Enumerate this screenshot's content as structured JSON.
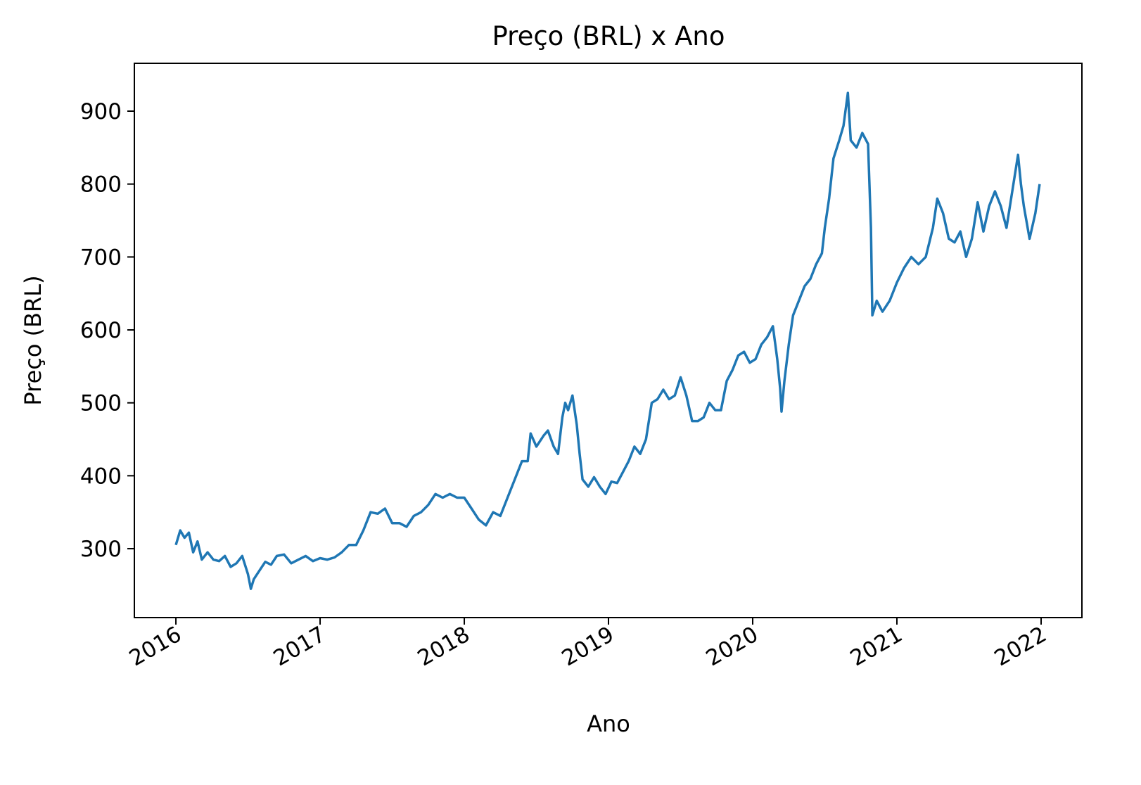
{
  "chart_data": {
    "type": "line",
    "title": "Preço (BRL) x Ano",
    "x_label": "Ano",
    "y_label": "Preço (BRL)",
    "color": "#1f77b4",
    "x": [
      2016.0,
      2016.03,
      2016.06,
      2016.09,
      2016.12,
      2016.15,
      2016.18,
      2016.22,
      2016.26,
      2016.3,
      2016.34,
      2016.38,
      2016.42,
      2016.46,
      2016.5,
      2016.52,
      2016.54,
      2016.58,
      2016.62,
      2016.66,
      2016.7,
      2016.75,
      2016.8,
      2016.85,
      2016.9,
      2016.95,
      2017.0,
      2017.05,
      2017.1,
      2017.15,
      2017.2,
      2017.25,
      2017.3,
      2017.35,
      2017.4,
      2017.45,
      2017.5,
      2017.55,
      2017.6,
      2017.65,
      2017.7,
      2017.75,
      2017.8,
      2017.85,
      2017.9,
      2017.95,
      2018.0,
      2018.05,
      2018.1,
      2018.15,
      2018.2,
      2018.25,
      2018.3,
      2018.35,
      2018.4,
      2018.44,
      2018.46,
      2018.5,
      2018.55,
      2018.58,
      2018.62,
      2018.65,
      2018.68,
      2018.7,
      2018.72,
      2018.75,
      2018.78,
      2018.8,
      2018.82,
      2018.86,
      2018.9,
      2018.94,
      2018.98,
      2019.02,
      2019.06,
      2019.1,
      2019.14,
      2019.18,
      2019.22,
      2019.26,
      2019.3,
      2019.34,
      2019.38,
      2019.42,
      2019.46,
      2019.5,
      2019.54,
      2019.58,
      2019.62,
      2019.66,
      2019.7,
      2019.74,
      2019.78,
      2019.82,
      2019.86,
      2019.9,
      2019.94,
      2019.98,
      2020.02,
      2020.06,
      2020.1,
      2020.14,
      2020.17,
      2020.19,
      2020.2,
      2020.22,
      2020.25,
      2020.28,
      2020.32,
      2020.36,
      2020.4,
      2020.44,
      2020.48,
      2020.5,
      2020.53,
      2020.56,
      2020.6,
      2020.63,
      2020.66,
      2020.68,
      2020.72,
      2020.76,
      2020.8,
      2020.82,
      2020.83,
      2020.86,
      2020.9,
      2020.95,
      2021.0,
      2021.05,
      2021.1,
      2021.15,
      2021.2,
      2021.25,
      2021.28,
      2021.32,
      2021.36,
      2021.4,
      2021.44,
      2021.48,
      2021.52,
      2021.56,
      2021.6,
      2021.64,
      2021.68,
      2021.72,
      2021.76,
      2021.8,
      2021.84,
      2021.86,
      2021.88,
      2021.92,
      2021.96,
      2021.99
    ],
    "values": [
      305,
      325,
      315,
      322,
      295,
      310,
      285,
      295,
      285,
      283,
      290,
      275,
      280,
      290,
      265,
      245,
      258,
      270,
      282,
      278,
      290,
      292,
      280,
      285,
      290,
      283,
      287,
      285,
      288,
      295,
      305,
      305,
      325,
      350,
      348,
      355,
      335,
      335,
      330,
      345,
      350,
      360,
      375,
      370,
      375,
      370,
      370,
      355,
      340,
      332,
      350,
      345,
      370,
      395,
      420,
      420,
      458,
      440,
      455,
      462,
      440,
      430,
      480,
      500,
      490,
      510,
      470,
      430,
      395,
      385,
      398,
      385,
      375,
      392,
      390,
      405,
      420,
      440,
      430,
      450,
      500,
      505,
      518,
      505,
      510,
      535,
      510,
      475,
      475,
      480,
      500,
      490,
      490,
      530,
      545,
      565,
      570,
      555,
      560,
      580,
      590,
      605,
      560,
      520,
      488,
      530,
      580,
      620,
      640,
      660,
      670,
      690,
      705,
      740,
      780,
      835,
      860,
      880,
      925,
      860,
      850,
      870,
      855,
      740,
      620,
      640,
      625,
      640,
      665,
      685,
      700,
      690,
      700,
      740,
      780,
      760,
      725,
      720,
      735,
      700,
      725,
      775,
      735,
      770,
      790,
      770,
      740,
      790,
      840,
      800,
      770,
      725,
      760,
      800
    ],
    "xlim": [
      2015.712,
      2022.283
    ],
    "xticks": [
      2016,
      2017,
      2018,
      2019,
      2020,
      2021,
      2022
    ],
    "ylim": [
      205.5,
      965.6
    ],
    "yticks": [
      300,
      400,
      500,
      600,
      700,
      800,
      900
    ],
    "grid": false
  }
}
